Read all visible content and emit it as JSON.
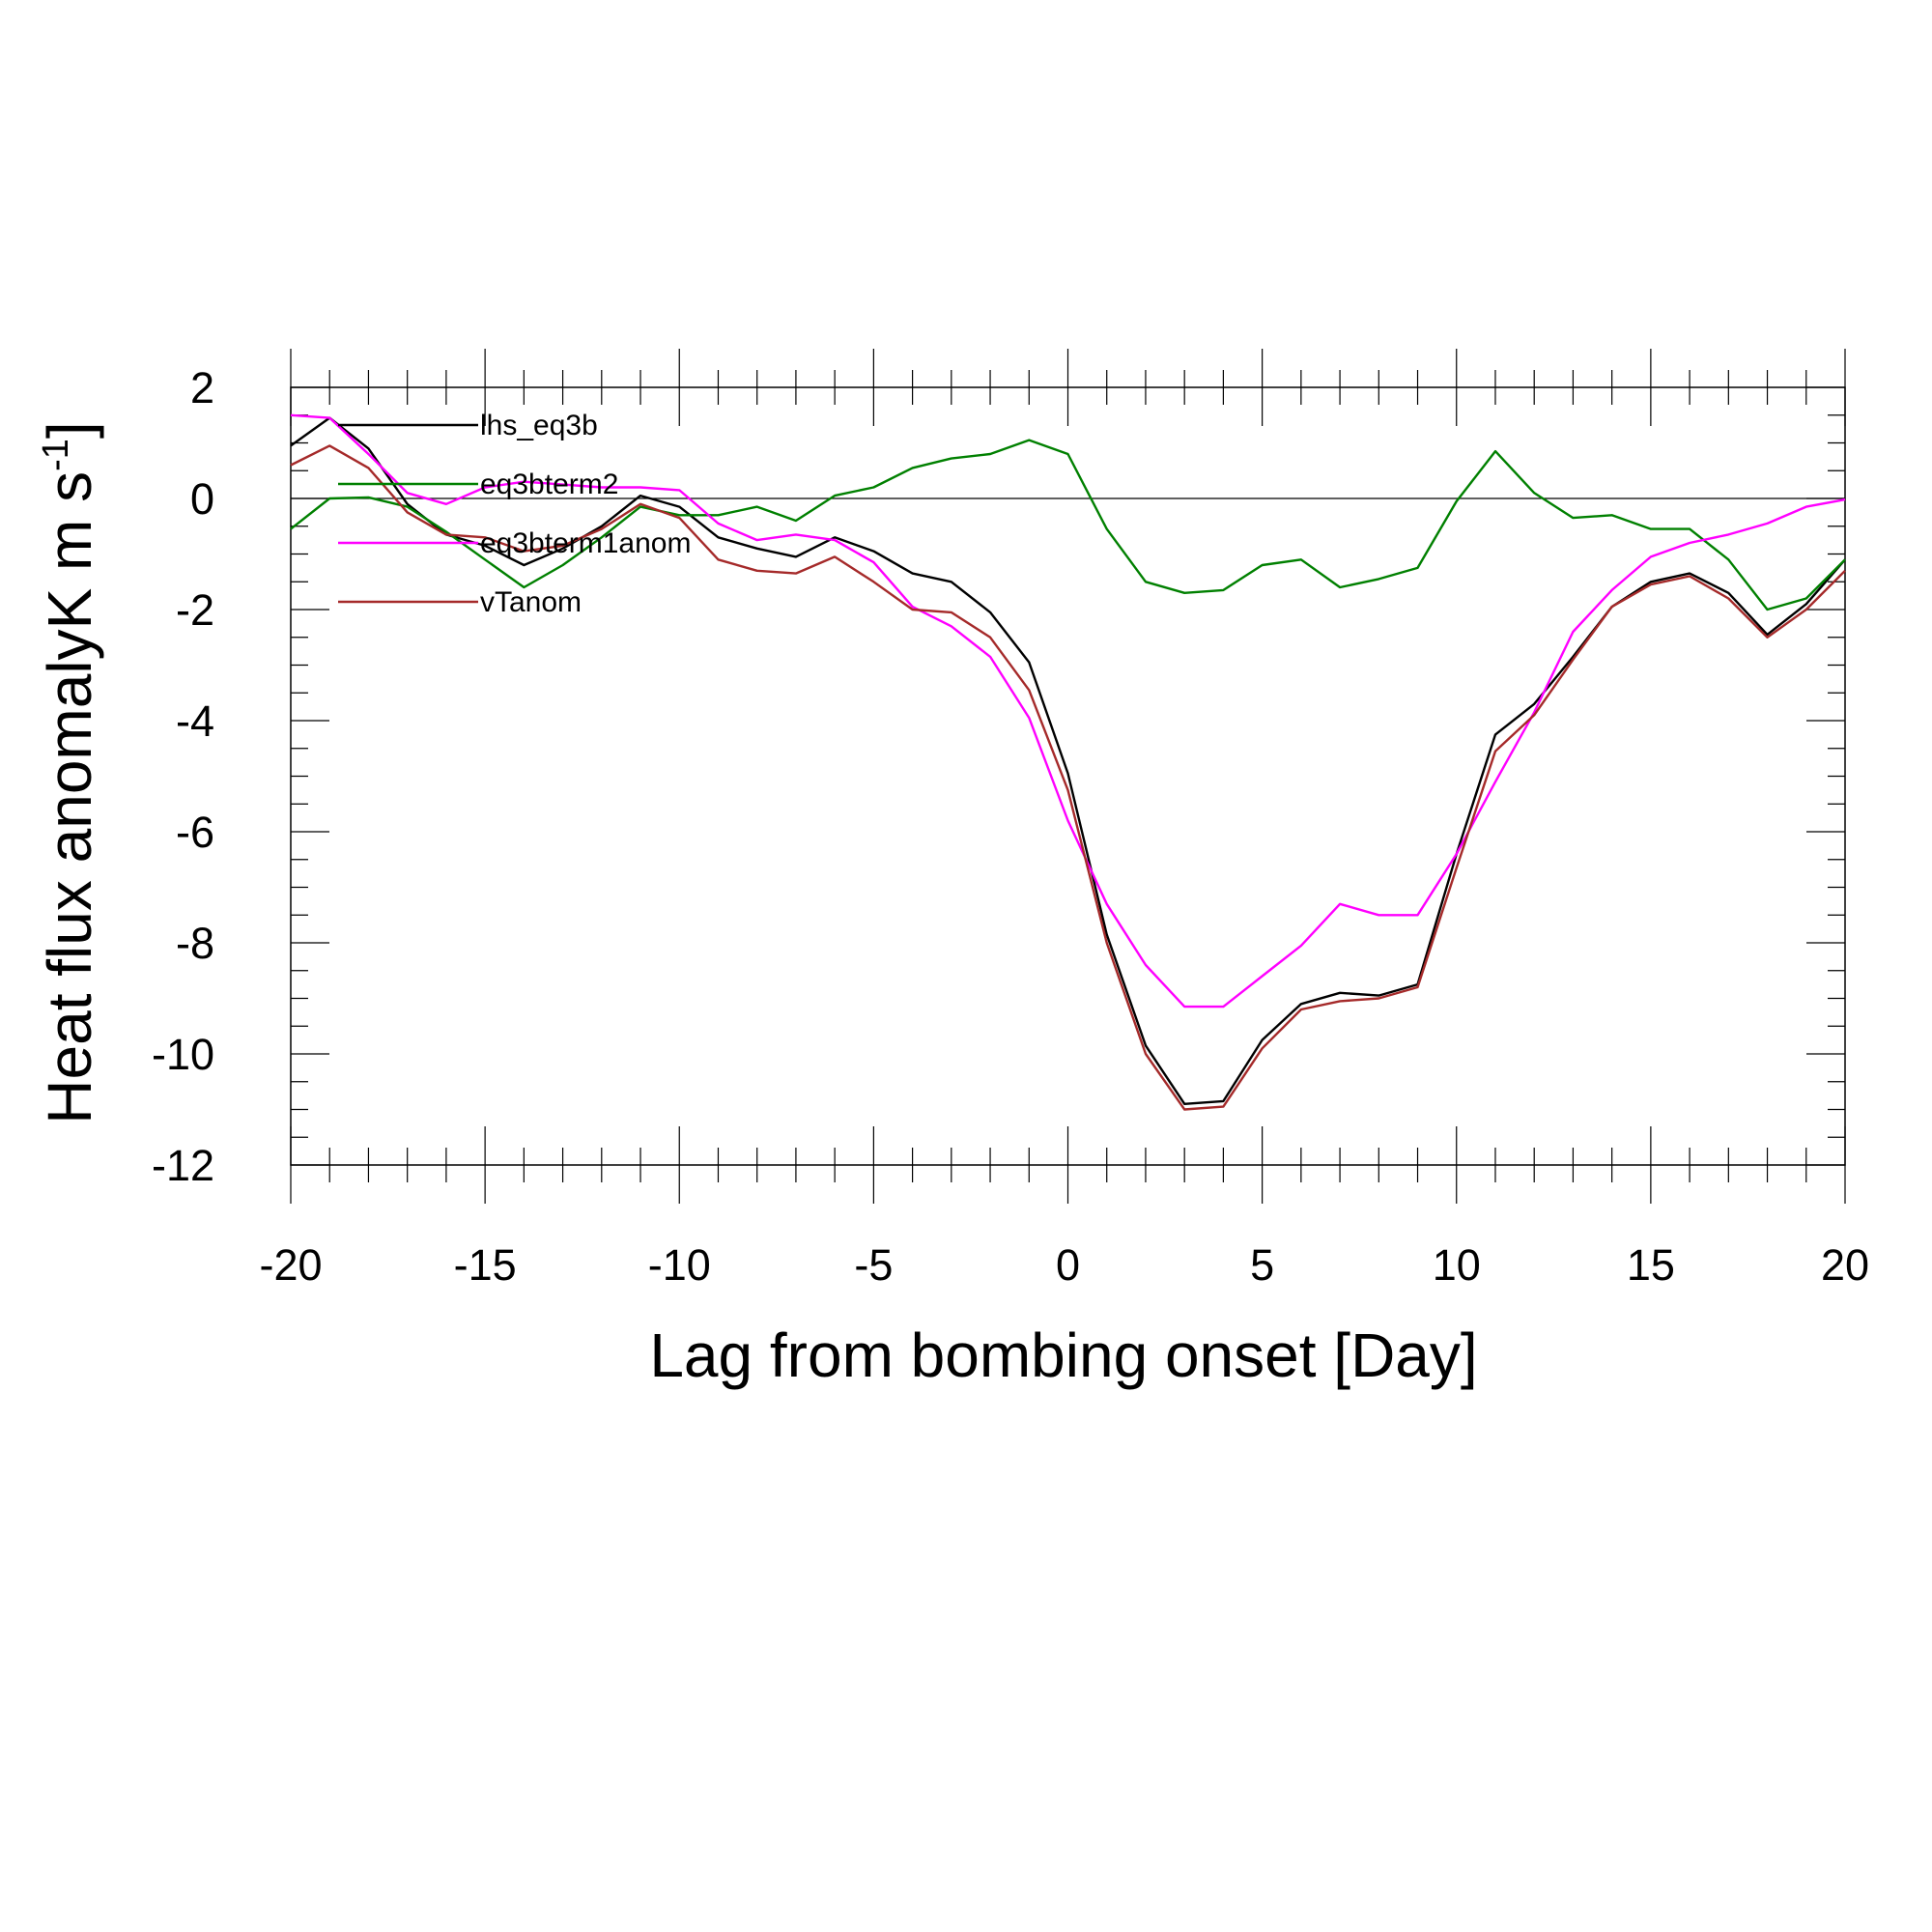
{
  "chart_data": {
    "type": "line",
    "title": "",
    "xlabel": "Lag from bombing onset [Day]",
    "ylabel": "Heat flux anomalyK m s",
    "ylabel_superscript": "-1",
    "ylabel_suffix": "]",
    "xlim": [
      -20,
      20
    ],
    "ylim": [
      -12,
      2
    ],
    "x_ticks": [
      -20,
      -15,
      -10,
      -5,
      0,
      5,
      10,
      15,
      20
    ],
    "x_tick_labels": [
      "-20",
      "-15",
      "-10",
      "-5",
      "0",
      "5",
      "10",
      "15",
      "20"
    ],
    "y_ticks": [
      2,
      0,
      -2,
      -4,
      -6,
      -8,
      -10,
      -12
    ],
    "y_tick_labels": [
      "2",
      "0",
      "-2",
      "-4",
      "-6",
      "-8",
      "-10",
      "-12"
    ],
    "zero_line": true,
    "grid": false,
    "legend_position": "top-left, inside plot",
    "x": [
      -20,
      -19,
      -18,
      -17,
      -16,
      -15,
      -14,
      -13,
      -12,
      -11,
      -10,
      -9,
      -8,
      -7,
      -6,
      -5,
      -4,
      -3,
      -2,
      -1,
      0,
      1,
      2,
      3,
      4,
      5,
      6,
      7,
      8,
      9,
      10,
      11,
      12,
      13,
      14,
      15,
      16,
      17,
      18,
      19,
      20
    ],
    "series": [
      {
        "name": "lhs_eq3b",
        "color": "#000000",
        "values": [
          0.95,
          1.45,
          0.9,
          -0.1,
          -0.65,
          -0.85,
          -1.2,
          -0.9,
          -0.5,
          0.05,
          -0.15,
          -0.7,
          -0.9,
          -1.05,
          -0.7,
          -0.95,
          -1.35,
          -1.5,
          -2.05,
          -2.95,
          -4.95,
          -7.85,
          -9.85,
          -10.9,
          -10.85,
          -9.75,
          -9.1,
          -8.9,
          -8.95,
          -8.75,
          -6.4,
          -4.25,
          -3.7,
          -2.85,
          -1.95,
          -1.5,
          -1.35,
          -1.7,
          -2.45,
          -1.9,
          -1.1
        ]
      },
      {
        "name": "eq3bterm2",
        "color": "#008000",
        "values": [
          -0.55,
          0.0,
          0.02,
          -0.15,
          -0.6,
          -1.1,
          -1.6,
          -1.2,
          -0.7,
          -0.15,
          -0.3,
          -0.3,
          -0.15,
          -0.4,
          0.05,
          0.2,
          0.55,
          0.72,
          0.8,
          1.05,
          0.8,
          -0.55,
          -1.5,
          -1.7,
          -1.65,
          -1.2,
          -1.1,
          -1.6,
          -1.45,
          -1.25,
          -0.05,
          0.85,
          0.1,
          -0.35,
          -0.3,
          -0.55,
          -0.55,
          -1.1,
          -2.0,
          -1.8,
          -1.1
        ]
      },
      {
        "name": "eq3bterm1anom",
        "color": "#ff00ff",
        "values": [
          1.5,
          1.45,
          0.8,
          0.1,
          -0.1,
          0.2,
          0.3,
          0.25,
          0.2,
          0.2,
          0.15,
          -0.45,
          -0.75,
          -0.65,
          -0.75,
          -1.15,
          -1.95,
          -2.3,
          -2.85,
          -3.95,
          -5.8,
          -7.3,
          -8.4,
          -9.15,
          -9.15,
          -8.6,
          -8.05,
          -7.3,
          -7.5,
          -7.5,
          -6.4,
          -5.1,
          -3.85,
          -2.4,
          -1.65,
          -1.05,
          -0.8,
          -0.65,
          -0.45,
          -0.15,
          -0.02
        ]
      },
      {
        "name": "vTanom",
        "color": "#a52a2a",
        "values": [
          0.6,
          0.95,
          0.55,
          -0.25,
          -0.65,
          -0.7,
          -0.95,
          -0.85,
          -0.55,
          -0.1,
          -0.35,
          -1.1,
          -1.3,
          -1.35,
          -1.05,
          -1.5,
          -2.0,
          -2.05,
          -2.5,
          -3.45,
          -5.25,
          -8.0,
          -10.0,
          -11.0,
          -10.95,
          -9.9,
          -9.2,
          -9.05,
          -9.0,
          -8.8,
          -6.65,
          -4.55,
          -3.9,
          -2.9,
          -1.95,
          -1.55,
          -1.4,
          -1.8,
          -2.5,
          -2.0,
          -1.3
        ]
      }
    ]
  }
}
